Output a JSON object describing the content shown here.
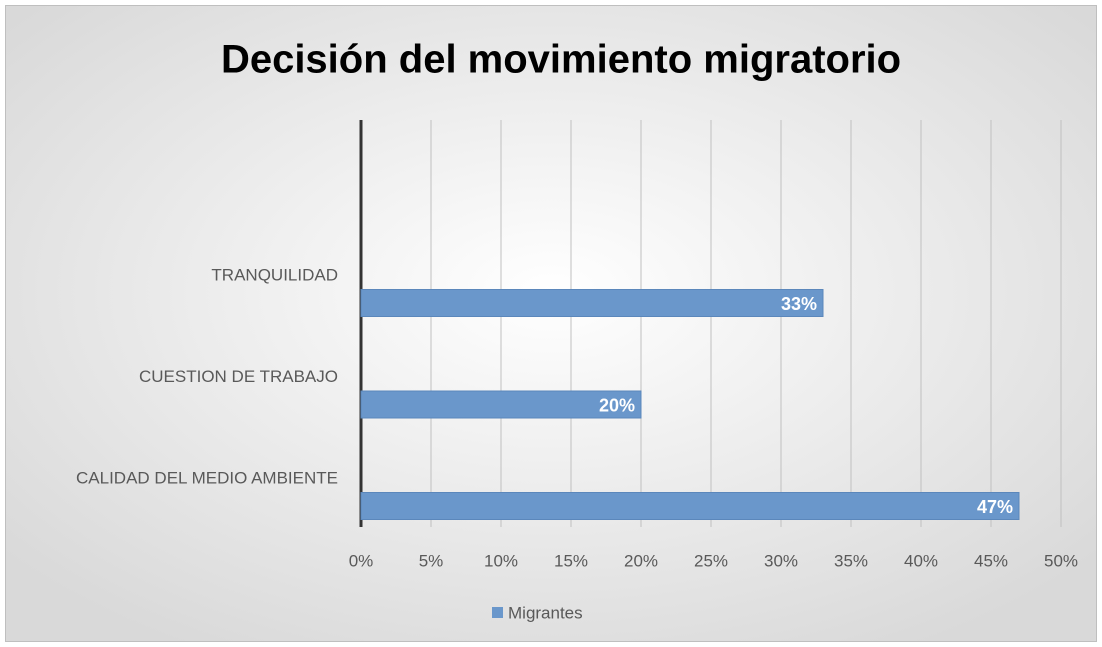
{
  "chart_data": {
    "type": "bar",
    "orientation": "horizontal",
    "title": "Decisión del movimiento migratorio",
    "categories": [
      "TRANQUILIDAD",
      "CUESTION DE TRABAJO",
      "CALIDAD DEL MEDIO AMBIENTE"
    ],
    "series": [
      {
        "name": "Migrantes",
        "color": "#6a97cb",
        "values": [
          33,
          20,
          47
        ],
        "value_labels": [
          "33%",
          "20%",
          "47%"
        ]
      }
    ],
    "xlim": [
      0,
      50
    ],
    "xticks": [
      {
        "value": 0,
        "label": "0%"
      },
      {
        "value": 5,
        "label": "5%"
      },
      {
        "value": 10,
        "label": "10%"
      },
      {
        "value": 15,
        "label": "15%"
      },
      {
        "value": 20,
        "label": "20%"
      },
      {
        "value": 25,
        "label": "25%"
      },
      {
        "value": 30,
        "label": "30%"
      },
      {
        "value": 35,
        "label": "35%"
      },
      {
        "value": 40,
        "label": "40%"
      },
      {
        "value": 45,
        "label": "45%"
      },
      {
        "value": 50,
        "label": "50%"
      }
    ],
    "grid": true,
    "legend": "bottom"
  }
}
